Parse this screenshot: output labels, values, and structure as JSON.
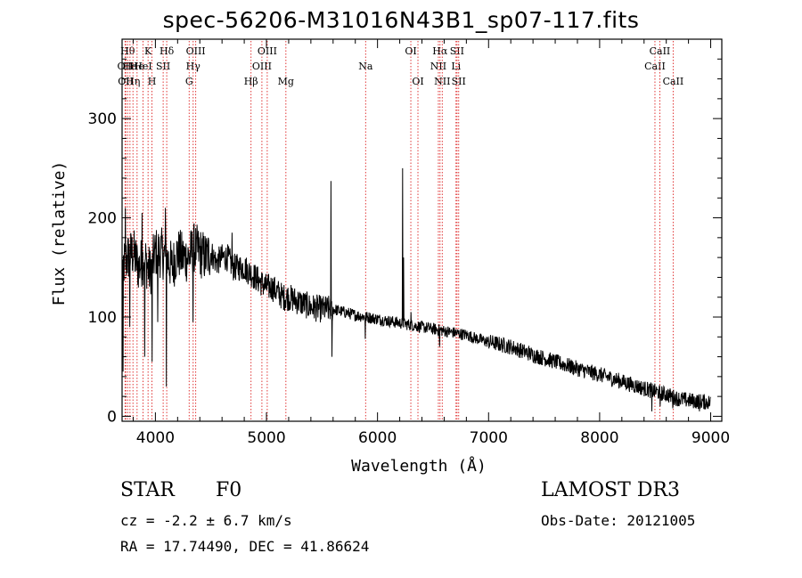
{
  "chart_data": {
    "type": "line",
    "title": "spec-56206-M31016N43B1_sp07-117.fits",
    "xlabel": "Wavelength (Å)",
    "ylabel": "Flux (relative)",
    "xlim": [
      3700,
      9100
    ],
    "ylim": [
      -5,
      380
    ],
    "xticks": [
      4000,
      5000,
      6000,
      7000,
      8000,
      9000
    ],
    "yticks": [
      0,
      100,
      200,
      300
    ],
    "series": [
      {
        "name": "flux",
        "x": [
          3700,
          3750,
          3800,
          3850,
          3900,
          3950,
          4000,
          4050,
          4100,
          4150,
          4200,
          4250,
          4300,
          4350,
          4400,
          4450,
          4500,
          4550,
          4600,
          4650,
          4700,
          4750,
          4800,
          4850,
          4900,
          4950,
          5000,
          5050,
          5100,
          5150,
          5200,
          5300,
          5400,
          5500,
          5600,
          5700,
          5800,
          5900,
          6000,
          6100,
          6200,
          6300,
          6400,
          6500,
          6600,
          6700,
          6800,
          6900,
          7000,
          7200,
          7400,
          7600,
          7800,
          8000,
          8200,
          8400,
          8500,
          8600,
          8700,
          8800,
          8900,
          9000
        ],
        "y": [
          150,
          160,
          165,
          150,
          160,
          145,
          165,
          165,
          160,
          150,
          165,
          160,
          160,
          170,
          165,
          160,
          165,
          155,
          160,
          160,
          150,
          150,
          150,
          145,
          140,
          135,
          130,
          130,
          125,
          120,
          120,
          115,
          110,
          108,
          108,
          105,
          102,
          100,
          98,
          96,
          94,
          92,
          90,
          88,
          86,
          84,
          82,
          78,
          75,
          70,
          62,
          55,
          48,
          42,
          35,
          28,
          25,
          22,
          18,
          16,
          15,
          14
        ]
      }
    ],
    "spikes": [
      {
        "x": 3710,
        "y": 45
      },
      {
        "x": 3730,
        "y": 210
      },
      {
        "x": 3770,
        "y": 90
      },
      {
        "x": 3880,
        "y": 205
      },
      {
        "x": 3905,
        "y": 60
      },
      {
        "x": 3970,
        "y": 55
      },
      {
        "x": 4020,
        "y": 95
      },
      {
        "x": 4090,
        "y": 210
      },
      {
        "x": 4100,
        "y": 30
      },
      {
        "x": 4340,
        "y": 95
      },
      {
        "x": 4370,
        "y": 180
      },
      {
        "x": 4690,
        "y": 185
      },
      {
        "x": 5580,
        "y": 237
      },
      {
        "x": 5590,
        "y": 60
      },
      {
        "x": 5890,
        "y": 78
      },
      {
        "x": 6225,
        "y": 250
      },
      {
        "x": 6235,
        "y": 160
      },
      {
        "x": 6300,
        "y": 105
      },
      {
        "x": 6560,
        "y": 70
      },
      {
        "x": 8470,
        "y": 5
      },
      {
        "x": 8545,
        "y": 10
      },
      {
        "x": 8660,
        "y": 8
      },
      {
        "x": 8900,
        "y": 5
      }
    ],
    "lines": [
      {
        "x": 3727,
        "label": "OII",
        "row": 2
      },
      {
        "x": 3733,
        "label": "OII",
        "row": 3
      },
      {
        "x": 3750,
        "label": "Hθ",
        "row": 1
      },
      {
        "x": 3771,
        "label": "He",
        "row": 2
      },
      {
        "x": 3798,
        "label": "Hη",
        "row": 3
      },
      {
        "x": 3835,
        "label": "He",
        "row": 2
      },
      {
        "x": 3889,
        "label": "HeI",
        "row": 2
      },
      {
        "x": 3934,
        "label": "K",
        "row": 1
      },
      {
        "x": 3969,
        "label": "H",
        "row": 3
      },
      {
        "x": 4070,
        "label": "SII",
        "row": 2
      },
      {
        "x": 4102,
        "label": "Hδ",
        "row": 1
      },
      {
        "x": 4304,
        "label": "G",
        "row": 3
      },
      {
        "x": 4340,
        "label": "Hγ",
        "row": 2
      },
      {
        "x": 4363,
        "label": "OIII",
        "row": 1
      },
      {
        "x": 4861,
        "label": "Hβ",
        "row": 3
      },
      {
        "x": 4959,
        "label": "OIII",
        "row": 2
      },
      {
        "x": 5007,
        "label": "OIII",
        "row": 1
      },
      {
        "x": 5175,
        "label": "Mg",
        "row": 3
      },
      {
        "x": 5893,
        "label": "Na",
        "row": 2
      },
      {
        "x": 6300,
        "label": "OI",
        "row": 1
      },
      {
        "x": 6364,
        "label": "OI",
        "row": 3
      },
      {
        "x": 6548,
        "label": "NII",
        "row": 2
      },
      {
        "x": 6563,
        "label": "Hα",
        "row": 1
      },
      {
        "x": 6583,
        "label": "NII",
        "row": 3
      },
      {
        "x": 6707,
        "label": "Li",
        "row": 2
      },
      {
        "x": 6716,
        "label": "SII",
        "row": 1
      },
      {
        "x": 6731,
        "label": "SII",
        "row": 3
      },
      {
        "x": 8498,
        "label": "CaII",
        "row": 2
      },
      {
        "x": 8542,
        "label": "CaII",
        "row": 1
      },
      {
        "x": 8662,
        "label": "CaII",
        "row": 3
      }
    ]
  },
  "info": {
    "class": "STAR",
    "subclass": "F0",
    "survey": "LAMOST DR3",
    "cz": "cz = -2.2 ± 6.7 km/s",
    "obs_date": "Obs-Date: 20121005",
    "coords": "RA =  17.74490, DEC =  41.86624"
  }
}
